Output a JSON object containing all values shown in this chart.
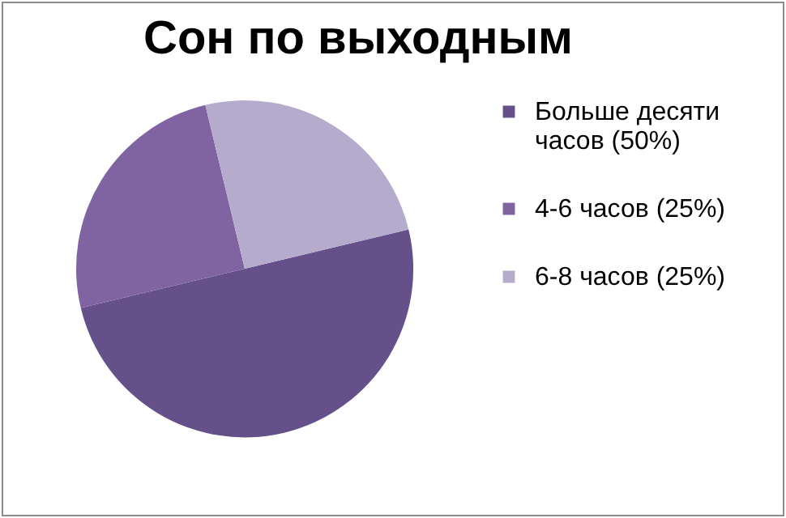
{
  "chart_data": {
    "type": "pie",
    "title": "Сон по выходным",
    "categories": [
      "Больше десяти часов (50%)",
      "4-6 часов (25%)",
      "6-8 часов (25%)"
    ],
    "values": [
      50,
      25,
      25
    ],
    "colors": [
      "#66508a",
      "#8064a2",
      "#b5abcc"
    ],
    "legend": "right"
  }
}
